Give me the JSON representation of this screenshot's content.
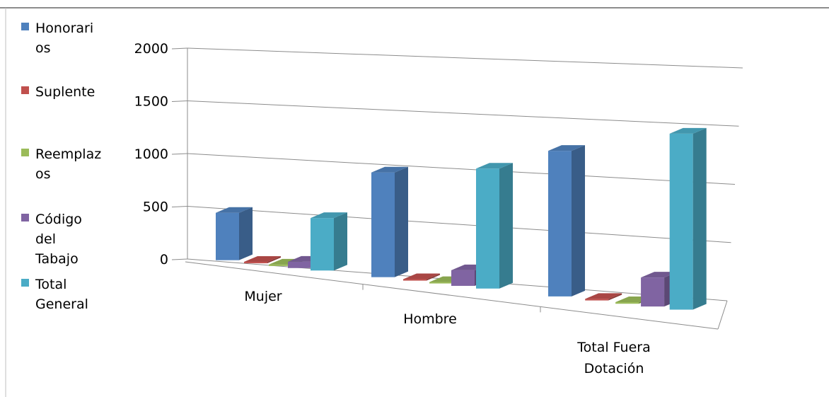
{
  "chart_data": {
    "type": "bar",
    "categories": [
      "Mujer",
      "Hombre",
      "Total Fuera Dotación"
    ],
    "category_lines": [
      [
        "Mujer"
      ],
      [
        "Hombre"
      ],
      [
        "Total Fuera",
        "Dotación"
      ]
    ],
    "series": [
      {
        "name": "Honorarios",
        "legend_lines": [
          "Honorari",
          "os"
        ],
        "color": "#4F81BD",
        "values": [
          450,
          1000,
          1400
        ]
      },
      {
        "name": "Suplente",
        "legend_lines": [
          "Suplente"
        ],
        "color": "#C0504D",
        "values": [
          5,
          10,
          15
        ]
      },
      {
        "name": "Reemplazos",
        "legend_lines": [
          "Reemplaz",
          "os"
        ],
        "color": "#9BBB59",
        "values": [
          5,
          10,
          15
        ]
      },
      {
        "name": "Código del Tabajo",
        "legend_lines": [
          "Código",
          "del",
          "Tabajo"
        ],
        "color": "#8064A2",
        "values": [
          60,
          150,
          280
        ]
      },
      {
        "name": "Total General",
        "legend_lines": [
          "Total",
          "General"
        ],
        "color": "#4BACC6",
        "values": [
          500,
          1150,
          1700
        ]
      }
    ],
    "y_ticks": [
      "0",
      "500",
      "1000",
      "1500",
      "2000"
    ],
    "ylim": [
      0,
      2000
    ],
    "grid": true,
    "legend_position": "left",
    "title": "",
    "xlabel": "",
    "ylabel": ""
  }
}
